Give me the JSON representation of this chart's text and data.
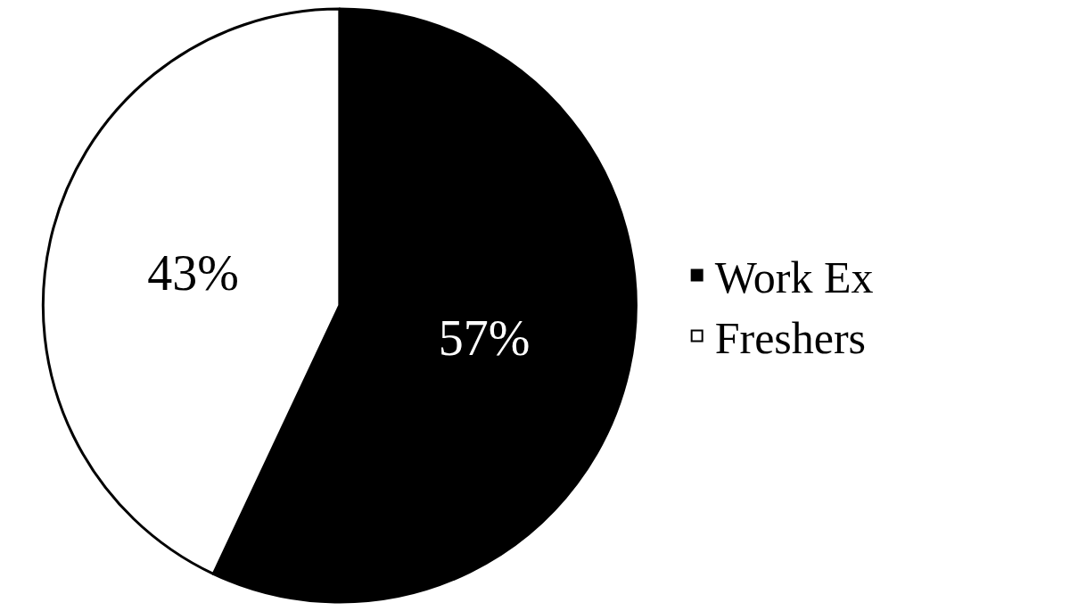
{
  "chart_data": {
    "type": "pie",
    "categories": [
      "Work Ex",
      "Freshers"
    ],
    "values": [
      57,
      43
    ],
    "colors": [
      "#000000",
      "#ffffff"
    ],
    "value_labels": [
      "57%",
      "43%"
    ],
    "legend": "right"
  }
}
